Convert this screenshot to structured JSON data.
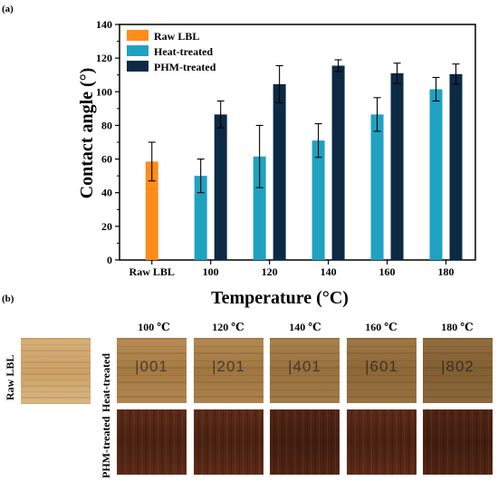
{
  "panel_a_label": "(a)",
  "panel_b_label": "(b)",
  "chart_data": {
    "type": "bar",
    "xlabel": "Temperature (°C)",
    "ylabel": "Contact angle (°)",
    "ylim": [
      0,
      140
    ],
    "yticks": [
      0,
      20,
      40,
      60,
      80,
      100,
      120,
      140
    ],
    "categories": [
      "Raw LBL",
      "100",
      "120",
      "140",
      "160",
      "180"
    ],
    "legend_position": "top-left",
    "grid": false,
    "series": [
      {
        "name": "Raw LBL",
        "color": "#ff8c1a",
        "values": [
          58.5,
          null,
          null,
          null,
          null,
          null
        ],
        "errors": [
          11.5,
          null,
          null,
          null,
          null,
          null
        ]
      },
      {
        "name": "Heat-treated",
        "color": "#1fa2c0",
        "values": [
          null,
          50,
          61.5,
          71,
          86.5,
          101.5
        ],
        "errors": [
          null,
          10,
          18.5,
          10,
          10,
          7
        ]
      },
      {
        "name": "PHM-treated",
        "color": "#0d2a45",
        "values": [
          null,
          86.5,
          104.5,
          115.5,
          111,
          110.5
        ],
        "errors": [
          null,
          8,
          11,
          3.5,
          6,
          6
        ]
      }
    ]
  },
  "photo_panel": {
    "temperatures": [
      "100 ℃",
      "120 ℃",
      "140 ℃",
      "160 ℃",
      "180 ℃"
    ],
    "raw_label": "Raw LBL",
    "heat_label": "Heat-treated",
    "phm_label": "PHM-treated",
    "sample_marks": [
      "|001",
      "|201",
      "|401",
      "|601",
      "|802"
    ]
  }
}
